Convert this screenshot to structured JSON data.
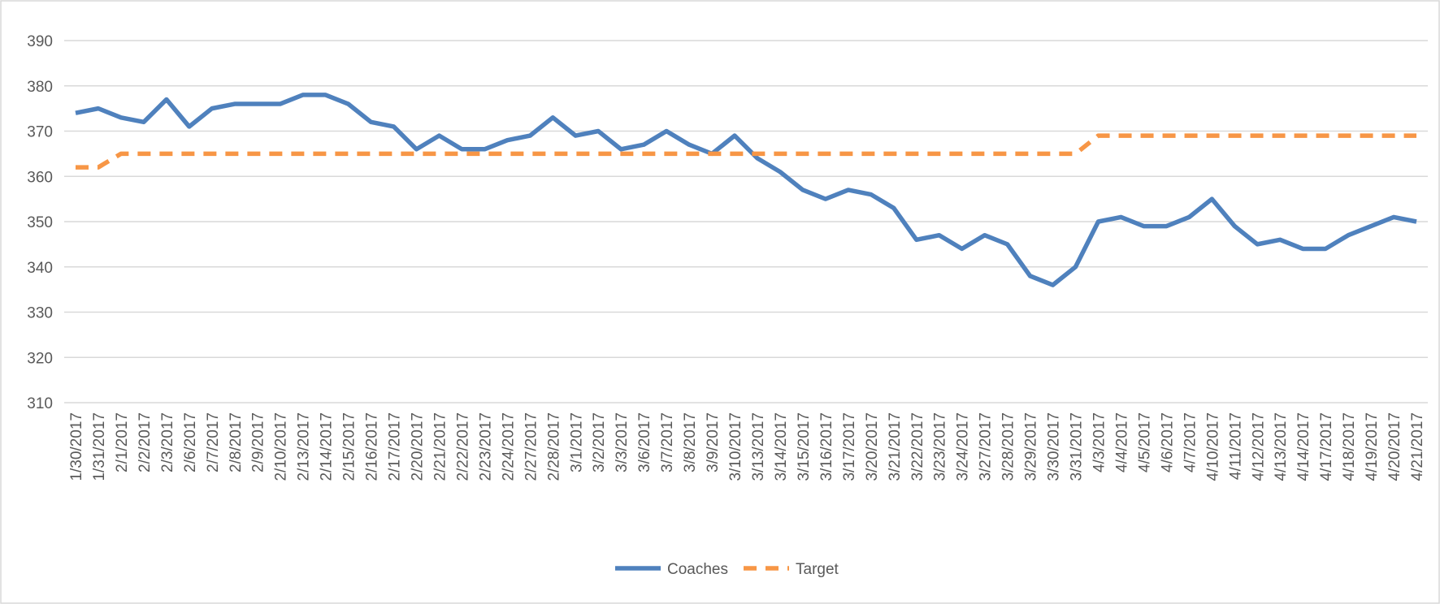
{
  "chart_data": {
    "type": "line",
    "categories": [
      "1/30/2017",
      "1/31/2017",
      "2/1/2017",
      "2/2/2017",
      "2/3/2017",
      "2/6/2017",
      "2/7/2017",
      "2/8/2017",
      "2/9/2017",
      "2/10/2017",
      "2/13/2017",
      "2/14/2017",
      "2/15/2017",
      "2/16/2017",
      "2/17/2017",
      "2/20/2017",
      "2/21/2017",
      "2/22/2017",
      "2/23/2017",
      "2/24/2017",
      "2/27/2017",
      "2/28/2017",
      "3/1/2017",
      "3/2/2017",
      "3/3/2017",
      "3/6/2017",
      "3/7/2017",
      "3/8/2017",
      "3/9/2017",
      "3/10/2017",
      "3/13/2017",
      "3/14/2017",
      "3/15/2017",
      "3/16/2017",
      "3/17/2017",
      "3/20/2017",
      "3/21/2017",
      "3/22/2017",
      "3/23/2017",
      "3/24/2017",
      "3/27/2017",
      "3/28/2017",
      "3/29/2017",
      "3/30/2017",
      "3/31/2017",
      "4/3/2017",
      "4/4/2017",
      "4/5/2017",
      "4/6/2017",
      "4/7/2017",
      "4/10/2017",
      "4/11/2017",
      "4/12/2017",
      "4/13/2017",
      "4/14/2017",
      "4/17/2017",
      "4/18/2017",
      "4/19/2017",
      "4/20/2017",
      "4/21/2017"
    ],
    "series": [
      {
        "name": "Coaches",
        "color": "#4f81bd",
        "dash": false,
        "values": [
          374,
          375,
          373,
          372,
          377,
          371,
          375,
          376,
          376,
          376,
          378,
          378,
          376,
          372,
          371,
          366,
          369,
          366,
          366,
          368,
          369,
          373,
          369,
          370,
          366,
          367,
          370,
          367,
          365,
          369,
          364,
          361,
          357,
          355,
          357,
          356,
          353,
          346,
          347,
          344,
          347,
          345,
          338,
          336,
          340,
          350,
          351,
          349,
          349,
          351,
          355,
          349,
          345,
          346,
          344,
          344,
          347,
          349,
          351,
          350
        ]
      },
      {
        "name": "Target",
        "color": "#f79646",
        "dash": true,
        "values": [
          362,
          362,
          365,
          365,
          365,
          365,
          365,
          365,
          365,
          365,
          365,
          365,
          365,
          365,
          365,
          365,
          365,
          365,
          365,
          365,
          365,
          365,
          365,
          365,
          365,
          365,
          365,
          365,
          365,
          365,
          365,
          365,
          365,
          365,
          365,
          365,
          365,
          365,
          365,
          365,
          365,
          365,
          365,
          365,
          365,
          369,
          369,
          369,
          369,
          369,
          369,
          369,
          369,
          369,
          369,
          369,
          369,
          369,
          369,
          369
        ]
      }
    ],
    "ylim": [
      310,
      390
    ],
    "yticks": [
      310,
      320,
      330,
      340,
      350,
      360,
      370,
      380,
      390
    ],
    "grid": true,
    "legend": "bottom"
  }
}
